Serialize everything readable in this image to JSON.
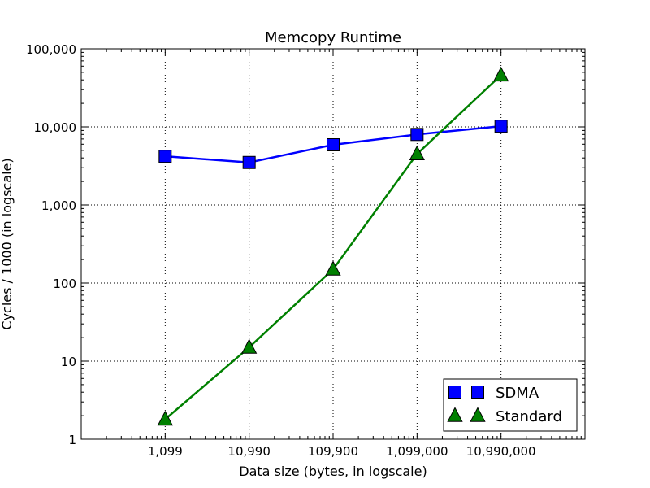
{
  "chart_data": {
    "type": "line",
    "title": "Memcopy Runtime",
    "xlabel": "Data size (bytes, in logscale)",
    "ylabel": "Cycles / 1000 (in logscale)",
    "x_scale": "log",
    "y_scale": "log",
    "x": [
      1099,
      10990,
      109900,
      1099000,
      10990000
    ],
    "x_tick_labels": [
      "1,099",
      "10,990",
      "109,900",
      "1,099,000",
      "10,990,000"
    ],
    "y_ticks": [
      1,
      10,
      100,
      1000,
      10000,
      100000
    ],
    "y_tick_labels": [
      "1",
      "10",
      "100",
      "1,000",
      "10,000",
      "100,000"
    ],
    "ylim": [
      1,
      100000
    ],
    "grid": true,
    "legend_position": "lower-right",
    "series": [
      {
        "name": "SDMA",
        "marker": "square",
        "color": "#0000ff",
        "values": [
          4200,
          3500,
          5900,
          8000,
          10200
        ]
      },
      {
        "name": "Standard",
        "marker": "triangle",
        "color": "#008000",
        "values": [
          1.8,
          15,
          150,
          4500,
          46000
        ]
      }
    ]
  }
}
